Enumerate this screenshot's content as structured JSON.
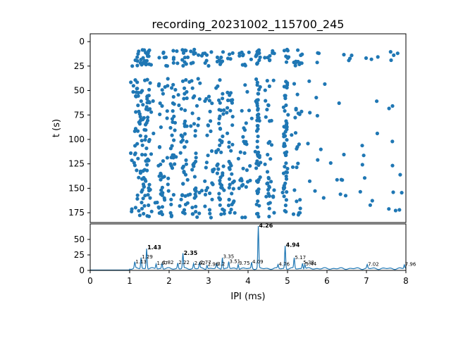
{
  "chart_data": [
    {
      "type": "scatter",
      "title": "recording_20231002_115700_245",
      "xlabel": "",
      "ylabel": "t (s)",
      "xlim": [
        0,
        8
      ],
      "ylim": [
        185,
        -8
      ],
      "y_inverted": true,
      "yticks": [
        "0",
        "25",
        "50",
        "75",
        "100",
        "125",
        "150",
        "175"
      ],
      "color": "#1f77b4",
      "note_points": "Spike events plotted as IPI (ms) vs time t (s); points approximated from density in the figure."
    },
    {
      "type": "line",
      "xlabel": "IPI (ms)",
      "ylabel": "",
      "xlim": [
        0,
        8
      ],
      "ylim": [
        0,
        75
      ],
      "xticks": [
        "0",
        "1",
        "2",
        "3",
        "4",
        "5",
        "6",
        "7",
        "8"
      ],
      "yticks": [
        "0",
        "25",
        "50"
      ],
      "color": "#1f77b4",
      "peak_labels": [
        {
          "x": 1.13,
          "label": "1.13",
          "y": 10
        },
        {
          "x": 1.29,
          "label": "1.29",
          "y": 18
        },
        {
          "x": 1.43,
          "label": "1.43",
          "y": 33
        },
        {
          "x": 1.67,
          "label": "1.67",
          "y": 8
        },
        {
          "x": 1.82,
          "label": "1.82",
          "y": 9
        },
        {
          "x": 2.22,
          "label": "2.22",
          "y": 9
        },
        {
          "x": 2.35,
          "label": "2.35",
          "y": 24
        },
        {
          "x": 2.62,
          "label": "2.62",
          "y": 8
        },
        {
          "x": 2.77,
          "label": "2.77",
          "y": 9
        },
        {
          "x": 2.96,
          "label": "2.96",
          "y": 6
        },
        {
          "x": 3.2,
          "label": "3.2",
          "y": 7
        },
        {
          "x": 3.35,
          "label": "3.35",
          "y": 19
        },
        {
          "x": 3.51,
          "label": "3.51",
          "y": 11
        },
        {
          "x": 3.75,
          "label": "3.75",
          "y": 8
        },
        {
          "x": 4.09,
          "label": "4.09",
          "y": 10
        },
        {
          "x": 4.26,
          "label": "4.26",
          "y": 68
        },
        {
          "x": 4.76,
          "label": "4.76",
          "y": 6
        },
        {
          "x": 4.94,
          "label": "4.94",
          "y": 37
        },
        {
          "x": 5.17,
          "label": "5.17",
          "y": 17
        },
        {
          "x": 5.38,
          "label": "5.38",
          "y": 9
        },
        {
          "x": 5.44,
          "label": "5.44",
          "y": 7
        },
        {
          "x": 7.02,
          "label": "7.02",
          "y": 6
        },
        {
          "x": 7.96,
          "label": "7.96",
          "y": 6
        }
      ]
    }
  ]
}
